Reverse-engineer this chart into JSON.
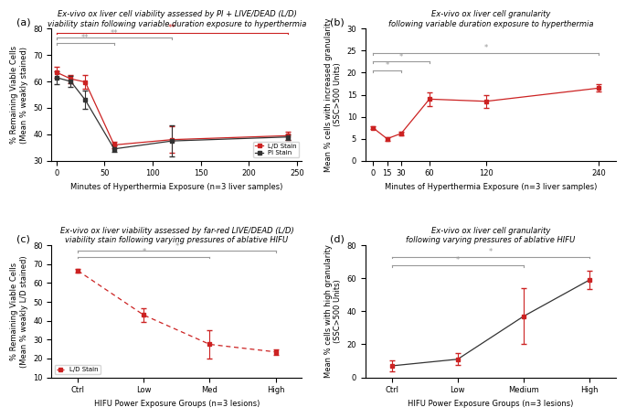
{
  "panel_a": {
    "title": "Ex-vivo ox liver cell viability assessed by PI + LIVE/DEAD (L/D)\nviability stain following variable duration exposure to hyperthermia",
    "xlabel": "Minutes of Hyperthermia Exposure (n=3 liver samples)",
    "ylabel": "% Remaining Viable Cells\n(Mean % weakly stained)",
    "x": [
      0,
      15,
      30,
      60,
      120,
      240
    ],
    "ld_y": [
      63.5,
      61.0,
      59.8,
      36.0,
      38.0,
      39.5
    ],
    "ld_err": [
      2.0,
      1.5,
      2.5,
      1.2,
      5.0,
      1.5
    ],
    "pi_y": [
      61.5,
      60.0,
      53.0,
      34.5,
      37.5,
      39.0
    ],
    "pi_err": [
      2.5,
      2.0,
      3.5,
      1.2,
      6.0,
      1.0
    ],
    "ylim": [
      30,
      80
    ],
    "yticks": [
      30,
      40,
      50,
      60,
      70,
      80
    ],
    "xticks": [
      0,
      50,
      100,
      150,
      200,
      250
    ],
    "xlim": [
      -5,
      255
    ],
    "sig_lines": [
      {
        "x1": 0,
        "x2": 60,
        "y": 74.5,
        "label": "**",
        "color": "gray"
      },
      {
        "x1": 0,
        "x2": 120,
        "y": 76.5,
        "label": "**",
        "color": "gray"
      },
      {
        "x1": 0,
        "x2": 240,
        "y": 78.5,
        "label": "**",
        "color": "red"
      }
    ]
  },
  "panel_b": {
    "title": "Ex-vivo ox liver cell granularity\nfollowing variable duration exposure to hyperthermia",
    "xlabel": "Minutes of Hyperthermia Exposure (n=3 liver samples)",
    "ylabel": "Mean % cells with increased granularity\n(SSC>500 Units)",
    "x": [
      0,
      15,
      30,
      60,
      120,
      240
    ],
    "y": [
      7.5,
      5.0,
      6.2,
      14.0,
      13.5,
      16.5
    ],
    "err": [
      0.3,
      0.4,
      0.5,
      1.5,
      1.5,
      0.8
    ],
    "ylim": [
      0,
      30
    ],
    "yticks": [
      0,
      5,
      10,
      15,
      20,
      25,
      30
    ],
    "xticks": [
      0,
      15,
      30,
      60,
      120,
      240
    ],
    "xlim": [
      -8,
      258
    ],
    "sig_lines": [
      {
        "x1": 0,
        "x2": 30,
        "y": 20.5,
        "label": "*",
        "color": "gray"
      },
      {
        "x1": 0,
        "x2": 60,
        "y": 22.5,
        "label": "*",
        "color": "gray"
      },
      {
        "x1": 0,
        "x2": 240,
        "y": 24.5,
        "label": "*",
        "color": "gray"
      }
    ]
  },
  "panel_c": {
    "title": "Ex-vivo ox liver viability assessed by far-red LIVE/DEAD (L/D)\nviability stain following varying pressures of ablative HIFU",
    "xlabel": "HIFU Power Exposure Groups (n=3 lesions)",
    "ylabel": "% Remaining Viable Cells\n(Mean % weakly L/D stained)",
    "x": [
      0,
      1,
      2,
      3
    ],
    "xlabels": [
      "Ctrl",
      "Low",
      "Med",
      "High"
    ],
    "y": [
      66.5,
      43.0,
      27.5,
      23.5
    ],
    "err": [
      1.0,
      3.5,
      7.5,
      1.5
    ],
    "ylim": [
      10,
      80
    ],
    "yticks": [
      10,
      20,
      30,
      40,
      50,
      60,
      70,
      80
    ],
    "sig_lines": [
      {
        "x1": 0,
        "x2": 2,
        "y": 74.0,
        "label": "*",
        "color": "gray"
      },
      {
        "x1": 0,
        "x2": 3,
        "y": 77.0,
        "label": "*",
        "color": "gray"
      }
    ]
  },
  "panel_d": {
    "title": "Ex-vivo ox liver cell granularity\nfollowing varying pressures of ablative HIFU",
    "xlabel": "HIFU Power Exposure Groups (n=3 lesions)",
    "ylabel": "Mean % cells with high granularity\n(SSC>500 Units)",
    "x": [
      0,
      1,
      2,
      3
    ],
    "xlabels": [
      "Ctrl",
      "Low",
      "Medium",
      "High"
    ],
    "y": [
      7.0,
      11.0,
      37.0,
      59.0
    ],
    "err": [
      3.5,
      3.5,
      17.0,
      5.5
    ],
    "ylim": [
      0,
      80
    ],
    "yticks": [
      0,
      20,
      40,
      60,
      80
    ],
    "sig_lines": [
      {
        "x1": 0,
        "x2": 2,
        "y": 68.0,
        "label": "*",
        "color": "gray"
      },
      {
        "x1": 0,
        "x2": 3,
        "y": 73.0,
        "label": "*",
        "color": "gray"
      }
    ]
  },
  "red_color": "#cc2222",
  "dark_color": "#333333"
}
